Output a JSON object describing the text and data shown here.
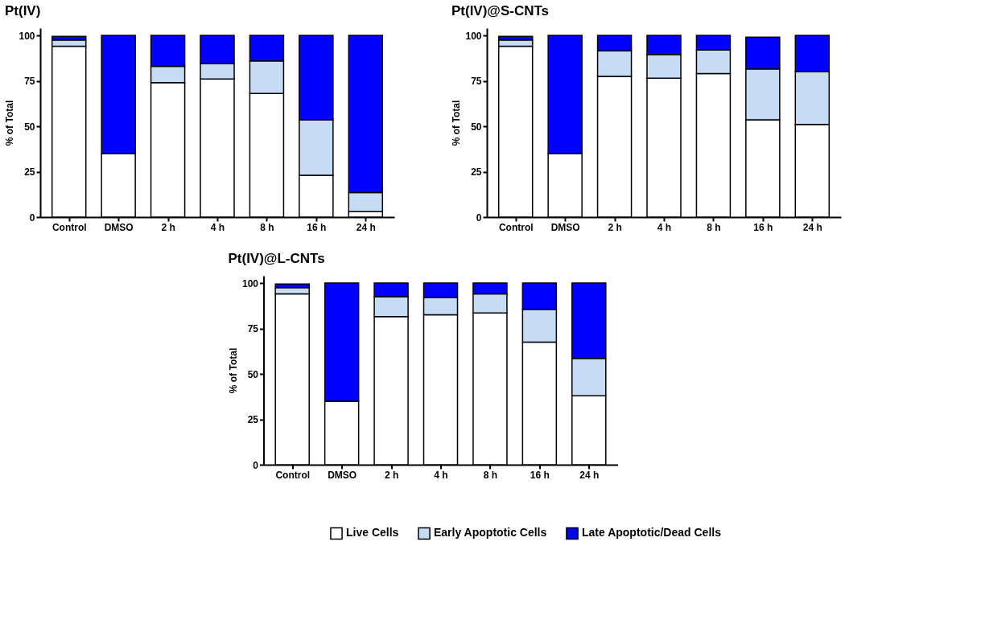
{
  "chart_data": [
    {
      "type": "bar",
      "stacked": true,
      "title": "Pt(IV)",
      "ylabel": "% of Total",
      "categories": [
        "Control",
        "DMSO",
        "2 h",
        "4 h",
        "8 h",
        "16 h",
        "24 h"
      ],
      "ylim": [
        0,
        104
      ],
      "yticks": [
        0,
        25,
        50,
        75,
        100
      ],
      "grid": false,
      "legend": "bottom",
      "series": [
        {
          "name": "Live Cells",
          "color": "#ffffff",
          "values": [
            94,
            35,
            74,
            76,
            68,
            23,
            3
          ]
        },
        {
          "name": "Early Apoptotic Cells",
          "color": "#c6dcf5",
          "values": [
            3.5,
            0,
            9,
            8.5,
            18,
            30.5,
            10.5
          ]
        },
        {
          "name": "Late Apoptotic/Dead Cells",
          "color": "#0000ff",
          "values": [
            2,
            65,
            17,
            15.5,
            14,
            46.5,
            86.5
          ]
        }
      ]
    },
    {
      "type": "bar",
      "stacked": true,
      "title": "Pt(IV)@S-CNTs",
      "ylabel": "% of Total",
      "categories": [
        "Control",
        "DMSO",
        "2 h",
        "4 h",
        "8 h",
        "16 h",
        "24 h"
      ],
      "ylim": [
        0,
        104
      ],
      "yticks": [
        0,
        25,
        50,
        75,
        100
      ],
      "grid": false,
      "legend": "bottom",
      "series": [
        {
          "name": "Live Cells",
          "color": "#ffffff",
          "values": [
            94,
            35,
            77.5,
            76.5,
            79,
            53.5,
            51
          ]
        },
        {
          "name": "Early Apoptotic Cells",
          "color": "#c6dcf5",
          "values": [
            3.5,
            0,
            14,
            13,
            13,
            28,
            29
          ]
        },
        {
          "name": "Late Apoptotic/Dead Cells",
          "color": "#0000ff",
          "values": [
            2,
            65,
            8.5,
            10.5,
            8,
            17.5,
            20
          ]
        }
      ]
    },
    {
      "type": "bar",
      "stacked": true,
      "title": "Pt(IV)@L-CNTs",
      "ylabel": "% of Total",
      "categories": [
        "Control",
        "DMSO",
        "2 h",
        "4 h",
        "8 h",
        "16 h",
        "24 h"
      ],
      "ylim": [
        0,
        104
      ],
      "yticks": [
        0,
        25,
        50,
        75,
        100
      ],
      "grid": false,
      "legend": "bottom",
      "series": [
        {
          "name": "Live Cells",
          "color": "#ffffff",
          "values": [
            94,
            35,
            81.5,
            82.5,
            83.5,
            67.5,
            38
          ]
        },
        {
          "name": "Early Apoptotic Cells",
          "color": "#c6dcf5",
          "values": [
            3.5,
            0,
            11,
            9.5,
            10.5,
            18,
            20.5
          ]
        },
        {
          "name": "Late Apoptotic/Dead Cells",
          "color": "#0000ff",
          "values": [
            2,
            65,
            7.5,
            8,
            6,
            14.5,
            41.5
          ]
        }
      ]
    }
  ]
}
